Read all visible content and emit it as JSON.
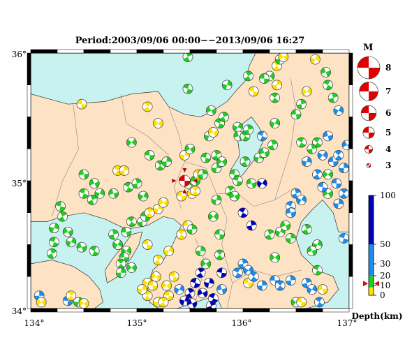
{
  "header": {
    "title": "Period:2003/09/06 00:00−−2013/09/06 16:27"
  },
  "map": {
    "lon_range": [
      134,
      137
    ],
    "lat_range": [
      34,
      36
    ],
    "lon_ticks": [
      "134°",
      "135°",
      "136°",
      "137°"
    ],
    "lat_ticks": [
      "36°",
      "35°",
      "34°"
    ],
    "colors": {
      "sea": "#c8f2f0",
      "land": "#fde3c3",
      "coast": "#333333",
      "border": "#888888",
      "frame": "#000000"
    }
  },
  "magnitude_legend": {
    "title": "M",
    "items": [
      {
        "label": "8",
        "m": 8
      },
      {
        "label": "7",
        "m": 7
      },
      {
        "label": "6",
        "m": 6
      },
      {
        "label": "5",
        "m": 5
      },
      {
        "label": "4",
        "m": 4
      },
      {
        "label": "3",
        "m": 3
      }
    ]
  },
  "depth_legend": {
    "title": "Depth(km)",
    "ticks": [
      "100",
      "50",
      "30",
      "20",
      "10",
      "0"
    ],
    "tick_values": [
      100,
      50,
      30,
      20,
      10,
      0
    ],
    "bands": [
      {
        "from": 0,
        "to": 8,
        "color": "#ffe000"
      },
      {
        "from": 8,
        "to": 20,
        "color": "#22cc22"
      },
      {
        "from": 20,
        "to": 50,
        "color": "#1e8ce8"
      },
      {
        "from": 50,
        "to": 100,
        "color": "#0000b4"
      }
    ],
    "marker_value": 12,
    "marker_color": "#d01010"
  },
  "highlight_event": {
    "lon": 135.45,
    "lat": 35.0,
    "m": 4.6,
    "color": "#e00000"
  },
  "mechanisms": [
    {
      "lon": 134.08,
      "lat": 34.1,
      "d": 32
    },
    {
      "lon": 134.1,
      "lat": 34.05,
      "d": 5
    },
    {
      "lon": 134.35,
      "lat": 34.06,
      "d": 32
    },
    {
      "lon": 134.38,
      "lat": 34.1,
      "d": 5
    },
    {
      "lon": 134.45,
      "lat": 34.05,
      "d": 10
    },
    {
      "lon": 134.5,
      "lat": 34.04,
      "d": 5
    },
    {
      "lon": 134.28,
      "lat": 34.8,
      "d": 12
    },
    {
      "lon": 134.3,
      "lat": 34.72,
      "d": 12
    },
    {
      "lon": 134.22,
      "lat": 34.63,
      "d": 12
    },
    {
      "lon": 134.35,
      "lat": 34.6,
      "d": 12
    },
    {
      "lon": 134.22,
      "lat": 34.52,
      "d": 12
    },
    {
      "lon": 134.2,
      "lat": 34.43,
      "d": 12
    },
    {
      "lon": 134.38,
      "lat": 34.52,
      "d": 12
    },
    {
      "lon": 134.48,
      "lat": 34.48,
      "d": 12
    },
    {
      "lon": 134.6,
      "lat": 34.45,
      "d": 12
    },
    {
      "lon": 134.78,
      "lat": 34.58,
      "d": 12
    },
    {
      "lon": 134.82,
      "lat": 34.5,
      "d": 12
    },
    {
      "lon": 134.9,
      "lat": 34.6,
      "d": 12
    },
    {
      "lon": 134.95,
      "lat": 34.68,
      "d": 12
    },
    {
      "lon": 135.05,
      "lat": 34.68,
      "d": 12
    },
    {
      "lon": 134.9,
      "lat": 34.45,
      "d": 12
    },
    {
      "lon": 134.88,
      "lat": 34.4,
      "d": 12
    },
    {
      "lon": 134.85,
      "lat": 34.35,
      "d": 12
    },
    {
      "lon": 134.85,
      "lat": 34.28,
      "d": 12
    },
    {
      "lon": 134.95,
      "lat": 34.32,
      "d": 12
    },
    {
      "lon": 135.08,
      "lat": 34.72,
      "d": 12
    },
    {
      "lon": 135.12,
      "lat": 34.75,
      "d": 5
    },
    {
      "lon": 135.2,
      "lat": 34.78,
      "d": 5
    },
    {
      "lon": 135.25,
      "lat": 34.83,
      "d": 5
    },
    {
      "lon": 135.1,
      "lat": 34.5,
      "d": 5
    },
    {
      "lon": 135.2,
      "lat": 34.38,
      "d": 5
    },
    {
      "lon": 135.3,
      "lat": 34.45,
      "d": 5
    },
    {
      "lon": 134.6,
      "lat": 34.98,
      "d": 12
    },
    {
      "lon": 134.5,
      "lat": 34.9,
      "d": 12
    },
    {
      "lon": 134.58,
      "lat": 34.85,
      "d": 12
    },
    {
      "lon": 134.65,
      "lat": 34.9,
      "d": 12
    },
    {
      "lon": 134.78,
      "lat": 34.9,
      "d": 12
    },
    {
      "lon": 134.92,
      "lat": 34.95,
      "d": 12
    },
    {
      "lon": 135.0,
      "lat": 34.98,
      "d": 12
    },
    {
      "lon": 135.06,
      "lat": 34.88,
      "d": 12
    },
    {
      "lon": 134.5,
      "lat": 35.05,
      "d": 12
    },
    {
      "lon": 134.82,
      "lat": 35.08,
      "d": 5
    },
    {
      "lon": 134.88,
      "lat": 35.08,
      "d": 5
    },
    {
      "lon": 134.95,
      "lat": 35.3,
      "d": 12
    },
    {
      "lon": 135.12,
      "lat": 35.2,
      "d": 12
    },
    {
      "lon": 135.22,
      "lat": 35.12,
      "d": 12
    },
    {
      "lon": 135.28,
      "lat": 35.15,
      "d": 12
    },
    {
      "lon": 135.2,
      "lat": 35.45,
      "d": 5
    },
    {
      "lon": 134.48,
      "lat": 35.6,
      "d": 5
    },
    {
      "lon": 135.1,
      "lat": 35.58,
      "d": 5
    },
    {
      "lon": 135.45,
      "lat": 35.2,
      "d": 5
    },
    {
      "lon": 135.5,
      "lat": 35.25,
      "d": 12
    },
    {
      "lon": 135.65,
      "lat": 35.18,
      "d": 12
    },
    {
      "lon": 135.75,
      "lat": 35.2,
      "d": 12
    },
    {
      "lon": 135.68,
      "lat": 35.35,
      "d": 12
    },
    {
      "lon": 135.72,
      "lat": 35.38,
      "d": 5
    },
    {
      "lon": 135.78,
      "lat": 35.45,
      "d": 12
    },
    {
      "lon": 135.82,
      "lat": 35.5,
      "d": 12
    },
    {
      "lon": 135.95,
      "lat": 35.42,
      "d": 12
    },
    {
      "lon": 135.96,
      "lat": 35.35,
      "d": 12
    },
    {
      "lon": 136.02,
      "lat": 35.35,
      "d": 12
    },
    {
      "lon": 136.05,
      "lat": 35.4,
      "d": 12
    },
    {
      "lon": 135.48,
      "lat": 34.98,
      "d": 12
    },
    {
      "lon": 135.55,
      "lat": 35.0,
      "d": 12
    },
    {
      "lon": 135.58,
      "lat": 35.05,
      "d": 5
    },
    {
      "lon": 135.62,
      "lat": 35.05,
      "d": 12
    },
    {
      "lon": 135.52,
      "lat": 34.9,
      "d": 5
    },
    {
      "lon": 135.42,
      "lat": 34.88,
      "d": 5
    },
    {
      "lon": 135.55,
      "lat": 34.92,
      "d": 5
    },
    {
      "lon": 135.75,
      "lat": 35.1,
      "d": 12
    },
    {
      "lon": 135.8,
      "lat": 35.15,
      "d": 12
    },
    {
      "lon": 135.92,
      "lat": 35.05,
      "d": 12
    },
    {
      "lon": 135.88,
      "lat": 34.92,
      "d": 12
    },
    {
      "lon": 135.75,
      "lat": 34.85,
      "d": 12
    },
    {
      "lon": 135.92,
      "lat": 34.88,
      "d": 12
    },
    {
      "lon": 135.95,
      "lat": 35.0,
      "d": 12
    },
    {
      "lon": 136.02,
      "lat": 35.15,
      "d": 12
    },
    {
      "lon": 136.15,
      "lat": 35.18,
      "d": 12
    },
    {
      "lon": 136.2,
      "lat": 35.22,
      "d": 12
    },
    {
      "lon": 136.18,
      "lat": 35.35,
      "d": 32
    },
    {
      "lon": 136.28,
      "lat": 35.28,
      "d": 12
    },
    {
      "lon": 136.3,
      "lat": 35.45,
      "d": 12
    },
    {
      "lon": 136.08,
      "lat": 34.98,
      "d": 12
    },
    {
      "lon": 136.0,
      "lat": 34.75,
      "d": 80
    },
    {
      "lon": 136.08,
      "lat": 34.65,
      "d": 80
    },
    {
      "lon": 136.18,
      "lat": 34.98,
      "d": 80
    },
    {
      "lon": 135.48,
      "lat": 34.65,
      "d": 5
    },
    {
      "lon": 135.42,
      "lat": 34.58,
      "d": 5
    },
    {
      "lon": 135.52,
      "lat": 34.62,
      "d": 12
    },
    {
      "lon": 135.72,
      "lat": 34.72,
      "d": 12
    },
    {
      "lon": 135.78,
      "lat": 34.58,
      "d": 12
    },
    {
      "lon": 135.78,
      "lat": 34.42,
      "d": 12
    },
    {
      "lon": 135.6,
      "lat": 34.45,
      "d": 12
    },
    {
      "lon": 135.65,
      "lat": 34.35,
      "d": 12
    },
    {
      "lon": 135.8,
      "lat": 34.28,
      "d": 80
    },
    {
      "lon": 135.6,
      "lat": 34.28,
      "d": 80
    },
    {
      "lon": 135.68,
      "lat": 34.2,
      "d": 80
    },
    {
      "lon": 135.62,
      "lat": 34.12,
      "d": 80
    },
    {
      "lon": 135.55,
      "lat": 34.2,
      "d": 80
    },
    {
      "lon": 135.5,
      "lat": 34.12,
      "d": 80
    },
    {
      "lon": 135.45,
      "lat": 34.06,
      "d": 80
    },
    {
      "lon": 135.52,
      "lat": 34.04,
      "d": 80
    },
    {
      "lon": 135.72,
      "lat": 34.08,
      "d": 80
    },
    {
      "lon": 135.7,
      "lat": 34.02,
      "d": 80
    },
    {
      "lon": 135.4,
      "lat": 34.15,
      "d": 32
    },
    {
      "lon": 135.8,
      "lat": 34.15,
      "d": 32
    },
    {
      "lon": 135.95,
      "lat": 34.28,
      "d": 32
    },
    {
      "lon": 136.0,
      "lat": 34.35,
      "d": 32
    },
    {
      "lon": 136.05,
      "lat": 34.3,
      "d": 32
    },
    {
      "lon": 136.05,
      "lat": 34.2,
      "d": 5
    },
    {
      "lon": 136.1,
      "lat": 34.25,
      "d": 32
    },
    {
      "lon": 136.18,
      "lat": 34.18,
      "d": 32
    },
    {
      "lon": 135.1,
      "lat": 34.2,
      "d": 5
    },
    {
      "lon": 135.15,
      "lat": 34.18,
      "d": 5
    },
    {
      "lon": 135.1,
      "lat": 34.1,
      "d": 5
    },
    {
      "lon": 135.2,
      "lat": 34.05,
      "d": 5
    },
    {
      "lon": 135.28,
      "lat": 34.18,
      "d": 5
    },
    {
      "lon": 135.3,
      "lat": 34.1,
      "d": 5
    },
    {
      "lon": 135.25,
      "lat": 34.05,
      "d": 5
    },
    {
      "lon": 135.05,
      "lat": 34.15,
      "d": 5
    },
    {
      "lon": 135.18,
      "lat": 34.25,
      "d": 5
    },
    {
      "lon": 135.35,
      "lat": 34.25,
      "d": 5
    },
    {
      "lon": 136.25,
      "lat": 34.58,
      "d": 12
    },
    {
      "lon": 136.35,
      "lat": 34.6,
      "d": 12
    },
    {
      "lon": 136.4,
      "lat": 34.65,
      "d": 12
    },
    {
      "lon": 136.45,
      "lat": 34.8,
      "d": 32
    },
    {
      "lon": 136.5,
      "lat": 34.9,
      "d": 32
    },
    {
      "lon": 136.55,
      "lat": 34.85,
      "d": 32
    },
    {
      "lon": 136.45,
      "lat": 34.75,
      "d": 32
    },
    {
      "lon": 136.55,
      "lat": 35.3,
      "d": 12
    },
    {
      "lon": 136.55,
      "lat": 35.6,
      "d": 12
    },
    {
      "lon": 136.6,
      "lat": 35.7,
      "d": 5
    },
    {
      "lon": 136.5,
      "lat": 35.52,
      "d": 12
    },
    {
      "lon": 136.3,
      "lat": 35.65,
      "d": 12
    },
    {
      "lon": 136.32,
      "lat": 35.75,
      "d": 5
    },
    {
      "lon": 136.25,
      "lat": 35.82,
      "d": 12
    },
    {
      "lon": 136.2,
      "lat": 35.8,
      "d": 12
    },
    {
      "lon": 136.32,
      "lat": 35.9,
      "d": 5
    },
    {
      "lon": 136.35,
      "lat": 35.95,
      "d": 12
    },
    {
      "lon": 136.38,
      "lat": 35.97,
      "d": 5
    },
    {
      "lon": 136.1,
      "lat": 35.7,
      "d": 5
    },
    {
      "lon": 136.05,
      "lat": 35.82,
      "d": 12
    },
    {
      "lon": 135.85,
      "lat": 35.75,
      "d": 12
    },
    {
      "lon": 135.7,
      "lat": 35.55,
      "d": 12
    },
    {
      "lon": 135.48,
      "lat": 35.72,
      "d": 12
    },
    {
      "lon": 135.48,
      "lat": 35.97,
      "d": 12
    },
    {
      "lon": 136.68,
      "lat": 35.95,
      "d": 5
    },
    {
      "lon": 136.78,
      "lat": 35.85,
      "d": 12
    },
    {
      "lon": 136.8,
      "lat": 35.75,
      "d": 12
    },
    {
      "lon": 136.85,
      "lat": 35.65,
      "d": 12
    },
    {
      "lon": 136.9,
      "lat": 35.55,
      "d": 32
    },
    {
      "lon": 136.8,
      "lat": 35.35,
      "d": 32
    },
    {
      "lon": 136.7,
      "lat": 35.3,
      "d": 12
    },
    {
      "lon": 136.65,
      "lat": 35.25,
      "d": 12
    },
    {
      "lon": 136.75,
      "lat": 35.2,
      "d": 32
    },
    {
      "lon": 136.85,
      "lat": 35.15,
      "d": 32
    },
    {
      "lon": 136.9,
      "lat": 35.2,
      "d": 32
    },
    {
      "lon": 136.95,
      "lat": 35.1,
      "d": 32
    },
    {
      "lon": 136.8,
      "lat": 35.05,
      "d": 12
    },
    {
      "lon": 136.88,
      "lat": 34.98,
      "d": 32
    },
    {
      "lon": 136.95,
      "lat": 34.9,
      "d": 32
    },
    {
      "lon": 136.9,
      "lat": 34.82,
      "d": 32
    },
    {
      "lon": 136.8,
      "lat": 34.9,
      "d": 12
    },
    {
      "lon": 136.75,
      "lat": 34.95,
      "d": 32
    },
    {
      "lon": 136.7,
      "lat": 35.05,
      "d": 32
    },
    {
      "lon": 136.6,
      "lat": 35.15,
      "d": 32
    },
    {
      "lon": 136.98,
      "lat": 35.28,
      "d": 32
    },
    {
      "lon": 136.95,
      "lat": 34.55,
      "d": 32
    },
    {
      "lon": 136.6,
      "lat": 34.62,
      "d": 12
    },
    {
      "lon": 136.7,
      "lat": 34.5,
      "d": 12
    },
    {
      "lon": 136.65,
      "lat": 34.45,
      "d": 12
    },
    {
      "lon": 136.7,
      "lat": 34.3,
      "d": 12
    },
    {
      "lon": 136.6,
      "lat": 34.2,
      "d": 32
    },
    {
      "lon": 136.65,
      "lat": 34.15,
      "d": 32
    },
    {
      "lon": 136.75,
      "lat": 34.15,
      "d": 5
    },
    {
      "lon": 136.72,
      "lat": 34.05,
      "d": 32
    },
    {
      "lon": 136.45,
      "lat": 34.22,
      "d": 32
    },
    {
      "lon": 136.5,
      "lat": 34.05,
      "d": 12
    },
    {
      "lon": 136.3,
      "lat": 34.22,
      "d": 32
    },
    {
      "lon": 136.35,
      "lat": 34.18,
      "d": 32
    },
    {
      "lon": 136.45,
      "lat": 34.55,
      "d": 12
    },
    {
      "lon": 136.3,
      "lat": 34.4,
      "d": 12
    },
    {
      "lon": 136.55,
      "lat": 34.05,
      "d": 5
    }
  ]
}
